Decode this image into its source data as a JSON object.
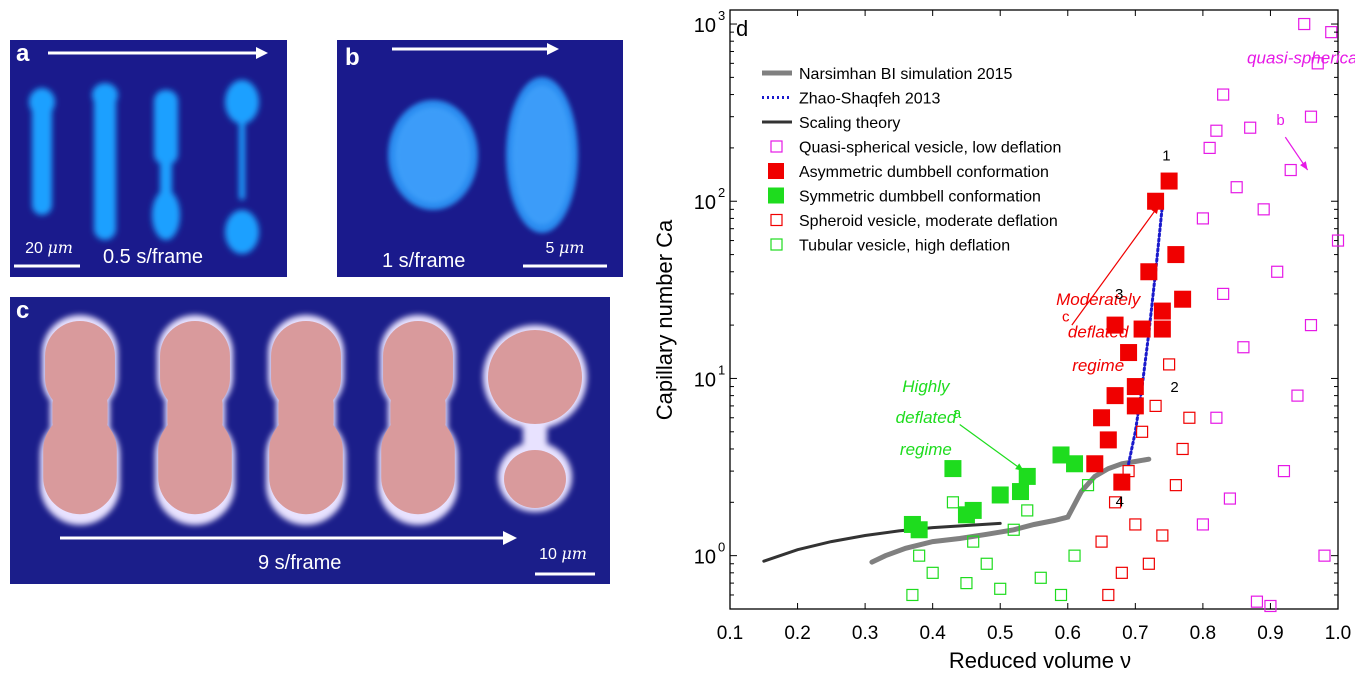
{
  "panels": {
    "a": {
      "label": "a",
      "frame_rate": "0.5 s/frame",
      "scale_value": "20",
      "scale_unit": "μm"
    },
    "b": {
      "label": "b",
      "frame_rate": "1 s/frame",
      "scale_value": "5",
      "scale_unit": "μm"
    },
    "c": {
      "label": "c",
      "frame_rate": "9 s/frame",
      "scale_value": "10",
      "scale_unit": "μm"
    }
  },
  "colors": {
    "background_blue": "#1a1a8c",
    "vesicle_blue": "#1fa0ff",
    "vesicle_pink": "#d99a9c",
    "magenta": "#e619e6",
    "red": "#f00000",
    "green": "#1edc1e",
    "bi_gray": "#808080",
    "zhao_blue": "#1a1acc",
    "scaling_dark": "#333333"
  },
  "chart_data": {
    "type": "scatter",
    "panel_label": "d",
    "xlabel": "Reduced volume ν",
    "ylabel": "Capillary number Ca",
    "xlim": [
      0.1,
      1.0
    ],
    "ylim": [
      0.5,
      1200
    ],
    "yscale": "log",
    "xticks": [
      0.1,
      0.2,
      0.3,
      0.4,
      0.5,
      0.6,
      0.7,
      0.8,
      0.9,
      1.0
    ],
    "xtick_labels": [
      "0.1",
      "0.2",
      "0.3",
      "0.4",
      "0.5",
      "0.6",
      "0.7",
      "0.8",
      "0.9",
      "1.0"
    ],
    "yticks": [
      1,
      10,
      100,
      1000
    ],
    "ytick_labels": [
      "10",
      "10",
      "10",
      "10"
    ],
    "ytick_exponents": [
      "0",
      "1",
      "2",
      "3"
    ],
    "legend_position": "top-left",
    "legend": [
      {
        "label": "Narsimhan BI simulation 2015",
        "kind": "line",
        "color": "#808080",
        "style": "solid"
      },
      {
        "label": "Zhao-Shaqfeh 2013",
        "kind": "line",
        "color": "#1a1acc",
        "style": "dotted"
      },
      {
        "label": "Scaling theory",
        "kind": "line",
        "color": "#333333",
        "style": "solid"
      },
      {
        "label": "Quasi-spherical vesicle, low deflation",
        "kind": "open-square",
        "color": "#e619e6"
      },
      {
        "label": "Asymmetric dumbbell conformation",
        "kind": "filled-square",
        "color": "#f00000"
      },
      {
        "label": "Symmetric dumbbell conformation",
        "kind": "filled-square",
        "color": "#1edc1e"
      },
      {
        "label": "Spheroid vesicle, moderate deflation",
        "kind": "open-square",
        "color": "#f00000"
      },
      {
        "label": "Tubular vesicle, high deflation",
        "kind": "open-square",
        "color": "#1edc1e"
      }
    ],
    "series": [
      {
        "name": "Narsimhan BI simulation 2015",
        "type": "line",
        "color": "#808080",
        "x": [
          0.31,
          0.33,
          0.36,
          0.4,
          0.44,
          0.48,
          0.52,
          0.55,
          0.58,
          0.6,
          0.62,
          0.64,
          0.66,
          0.68,
          0.7,
          0.72
        ],
        "y": [
          0.92,
          1.0,
          1.1,
          1.2,
          1.25,
          1.32,
          1.4,
          1.5,
          1.58,
          1.65,
          2.3,
          2.8,
          3.1,
          3.3,
          3.4,
          3.5
        ]
      },
      {
        "name": "Zhao-Shaqfeh 2013",
        "type": "line",
        "color": "#1a1acc",
        "x": [
          0.69,
          0.7,
          0.71,
          0.72,
          0.73,
          0.74
        ],
        "y": [
          3.3,
          5.0,
          9.0,
          18.0,
          40.0,
          95.0
        ]
      },
      {
        "name": "Scaling theory",
        "type": "line",
        "color": "#333333",
        "x": [
          0.15,
          0.2,
          0.25,
          0.3,
          0.35,
          0.4,
          0.45,
          0.5
        ],
        "y": [
          0.93,
          1.08,
          1.2,
          1.3,
          1.38,
          1.44,
          1.48,
          1.52
        ]
      },
      {
        "name": "Asymmetric dumbbell conformation",
        "type": "filled-square",
        "color": "#f00000",
        "x": [
          0.64,
          0.65,
          0.66,
          0.67,
          0.67,
          0.68,
          0.69,
          0.7,
          0.7,
          0.71,
          0.72,
          0.73,
          0.74,
          0.74,
          0.75,
          0.76,
          0.77
        ],
        "y": [
          3.3,
          6.0,
          4.5,
          8.0,
          20.0,
          2.6,
          14.0,
          9.0,
          7.0,
          19.0,
          40.0,
          100.0,
          24.0,
          19.0,
          130.0,
          50.0,
          28.0
        ]
      },
      {
        "name": "Symmetric dumbbell conformation",
        "type": "filled-square",
        "color": "#1edc1e",
        "x": [
          0.37,
          0.38,
          0.43,
          0.45,
          0.46,
          0.5,
          0.53,
          0.54,
          0.59,
          0.61
        ],
        "y": [
          1.5,
          1.4,
          3.1,
          1.7,
          1.8,
          2.2,
          2.3,
          2.8,
          3.7,
          3.3
        ]
      },
      {
        "name": "Quasi-spherical vesicle, low deflation",
        "type": "open-square",
        "color": "#e619e6",
        "x": [
          0.8,
          0.8,
          0.81,
          0.82,
          0.82,
          0.83,
          0.83,
          0.84,
          0.85,
          0.86,
          0.87,
          0.88,
          0.89,
          0.9,
          0.91,
          0.92,
          0.93,
          0.94,
          0.95,
          0.96,
          0.96,
          0.97,
          0.98,
          0.99,
          1.0
        ],
        "y": [
          1.5,
          80.0,
          200.0,
          6.0,
          250.0,
          30.0,
          400.0,
          2.1,
          120.0,
          15.0,
          260.0,
          0.55,
          90.0,
          0.52,
          40.0,
          3.0,
          150.0,
          8.0,
          1000.0,
          300.0,
          20.0,
          600.0,
          1.0,
          900.0,
          60.0
        ]
      },
      {
        "name": "Spheroid vesicle, moderate deflation",
        "type": "open-square",
        "color": "#f00000",
        "x": [
          0.65,
          0.66,
          0.67,
          0.68,
          0.69,
          0.7,
          0.71,
          0.72,
          0.73,
          0.74,
          0.75,
          0.76,
          0.77,
          0.78
        ],
        "y": [
          1.2,
          0.6,
          2.0,
          0.8,
          3.0,
          1.5,
          5.0,
          0.9,
          7.0,
          1.3,
          12.0,
          2.5,
          4.0,
          6.0
        ]
      },
      {
        "name": "Tubular vesicle, high deflation",
        "type": "open-square",
        "color": "#1edc1e",
        "x": [
          0.37,
          0.38,
          0.4,
          0.43,
          0.45,
          0.46,
          0.48,
          0.5,
          0.52,
          0.54,
          0.56,
          0.59,
          0.61,
          0.63
        ],
        "y": [
          0.6,
          1.0,
          0.8,
          2.0,
          0.7,
          1.2,
          0.9,
          0.65,
          1.4,
          1.8,
          0.75,
          0.6,
          1.0,
          2.5
        ]
      }
    ],
    "annotations": [
      {
        "text": "quasi-spherical",
        "color": "#e619e6",
        "x": 0.95,
        "y": 600
      },
      {
        "text": "b",
        "color": "#e619e6",
        "x": 0.915,
        "y": 270
      },
      {
        "text": "Moderately",
        "color": "#f00000",
        "x": 0.645,
        "y": 26
      },
      {
        "text": "deflated",
        "color": "#f00000",
        "x": 0.645,
        "y": 17
      },
      {
        "text": "regime",
        "color": "#f00000",
        "x": 0.645,
        "y": 11
      },
      {
        "text": "c",
        "color": "#f00000",
        "x": 0.597,
        "y": 21
      },
      {
        "text": "Highly",
        "color": "#1edc1e",
        "x": 0.39,
        "y": 8.4
      },
      {
        "text": "deflated",
        "color": "#1edc1e",
        "x": 0.39,
        "y": 5.6
      },
      {
        "text": "regime",
        "color": "#1edc1e",
        "x": 0.39,
        "y": 3.7
      },
      {
        "text": "a",
        "color": "#1edc1e",
        "x": 0.436,
        "y": 6.0
      },
      {
        "text": "1",
        "color": "#000000",
        "x": 0.746,
        "y": 170
      },
      {
        "text": "3",
        "color": "#000000",
        "x": 0.676,
        "y": 28
      },
      {
        "text": "2",
        "color": "#000000",
        "x": 0.758,
        "y": 8.4
      },
      {
        "text": "4",
        "color": "#000000",
        "x": 0.677,
        "y": 1.9
      }
    ]
  }
}
